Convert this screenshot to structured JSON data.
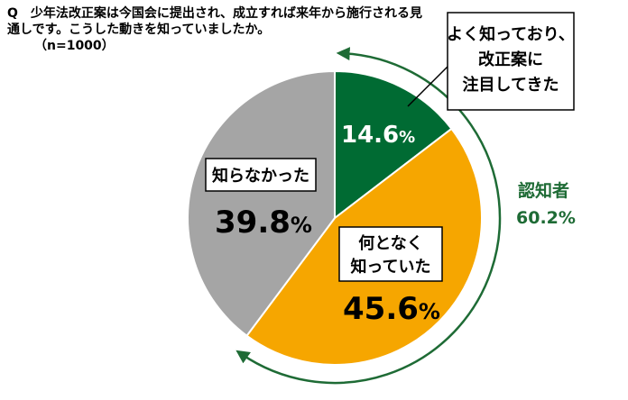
{
  "question": {
    "text": "Q　少年法改正案は今国会に提出され、成立すれば来年から施行される見通しです。こうした動きを知っていましたか。",
    "sample": "（n=1000）"
  },
  "chart_data": {
    "type": "pie",
    "title": "少年法改正案は今国会に提出され、成立すれば来年から施行される見通しです。こうした動きを知っていましたか。",
    "sample_size": 1000,
    "unit": "%",
    "slices": [
      {
        "label_lines": [
          "よく知っており、",
          "改正案に",
          "注目してきた"
        ],
        "value": 14.6,
        "color": "#006b33"
      },
      {
        "label_lines": [
          "何となく",
          "知っていた"
        ],
        "value": 45.6,
        "color": "#f6a600"
      },
      {
        "label_lines": [
          "知らなかった"
        ],
        "value": 39.8,
        "color": "#a5a5a5"
      }
    ],
    "bracket": {
      "label": "認知者",
      "value": 60.2,
      "unit": "%",
      "color": "#1e6b35"
    }
  }
}
